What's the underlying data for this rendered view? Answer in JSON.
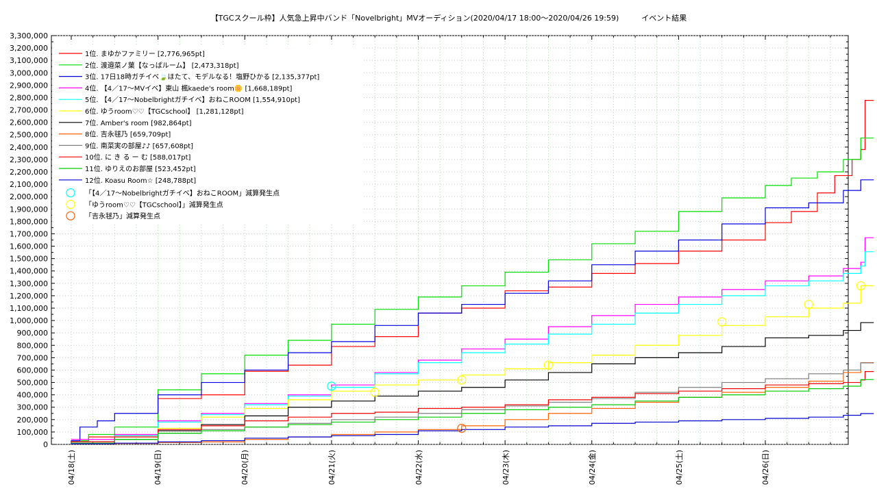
{
  "chart_data": {
    "type": "line",
    "title": "【TGCスクール枠】人気急上昇中バンド「Novelbright」MVオーディション(2020/04/17 18:00〜2020/04/26 19:59)　　　イベント結果",
    "xlabel": "",
    "ylabel": "",
    "x_tick_labels": [
      "04/18(土)",
      "04/19(日)",
      "04/20(月)",
      "04/21(火)",
      "04/22(水)",
      "04/23(木)",
      "04/24(金)",
      "04/25(土)",
      "04/26(日)"
    ],
    "ylim": [
      0,
      3300000
    ],
    "y_ticks": [
      0,
      100000,
      200000,
      300000,
      400000,
      500000,
      600000,
      700000,
      800000,
      900000,
      1000000,
      1100000,
      1200000,
      1300000,
      1400000,
      1500000,
      1600000,
      1700000,
      1800000,
      1900000,
      2000000,
      2100000,
      2200000,
      2300000,
      2400000,
      2500000,
      2600000,
      2700000,
      2800000,
      2900000,
      3000000,
      3100000,
      3200000,
      3300000
    ],
    "y_tick_labels": [
      "0",
      "100,000",
      "200,000",
      "300,000",
      "400,000",
      "500,000",
      "600,000",
      "700,000",
      "800,000",
      "900,000",
      "1,000,000",
      "1,100,000",
      "1,200,000",
      "1,300,000",
      "1,400,000",
      "1,500,000",
      "1,600,000",
      "1,700,000",
      "1,800,000",
      "1,900,000",
      "2,000,000",
      "2,100,000",
      "2,200,000",
      "2,300,000",
      "2,400,000",
      "2,500,000",
      "2,600,000",
      "2,700,000",
      "2,800,000",
      "2,900,000",
      "3,000,000",
      "3,100,000",
      "3,200,000",
      "3,300,000"
    ],
    "grid": true,
    "legend_position": "top-left",
    "x_domain": [
      0,
      9.25
    ],
    "series": [
      {
        "name": "1位. まゆかファミリー [2,776,965pt]",
        "color": "#ff0000",
        "x": [
          0,
          0.2,
          0.5,
          1,
          1.5,
          2,
          2.5,
          3,
          3.5,
          4,
          4.5,
          5,
          5.5,
          6,
          6.5,
          7,
          7.5,
          8,
          8.3,
          8.6,
          8.8,
          9.0,
          9.1,
          9.15,
          9.25
        ],
        "y": [
          30000,
          60000,
          70000,
          370000,
          400000,
          590000,
          640000,
          790000,
          870000,
          1060000,
          1100000,
          1240000,
          1270000,
          1380000,
          1460000,
          1560000,
          1650000,
          1790000,
          1880000,
          2030000,
          2170000,
          2300000,
          2380000,
          2776965,
          2776965
        ]
      },
      {
        "name": "2位. 渡邉菜ノ葉【なっぱルーム】 [2,473,318pt]",
        "color": "#00dd00",
        "x": [
          0,
          0.2,
          0.5,
          1,
          1.5,
          2,
          2.5,
          3,
          3.5,
          4,
          4.5,
          5,
          5.5,
          6,
          6.5,
          7,
          7.5,
          8,
          8.3,
          8.6,
          8.9,
          9.1,
          9.25
        ],
        "y": [
          30000,
          80000,
          140000,
          440000,
          570000,
          720000,
          840000,
          970000,
          1090000,
          1190000,
          1280000,
          1390000,
          1490000,
          1620000,
          1720000,
          1880000,
          1990000,
          2090000,
          2150000,
          2200000,
          2300000,
          2473318,
          2473318
        ]
      },
      {
        "name": "3位. 17日18時ガチイベ🍃ほたて、モデルなる！塩野ひかる [2,135,377pt]",
        "color": "#0000dd",
        "x": [
          0,
          0.1,
          0.3,
          0.5,
          1,
          1.5,
          2,
          2.5,
          3,
          3.5,
          4,
          4.5,
          5,
          5.5,
          6,
          6.5,
          7,
          7.5,
          8,
          8.5,
          8.9,
          9.1,
          9.25
        ],
        "y": [
          30000,
          140000,
          190000,
          250000,
          400000,
          500000,
          600000,
          740000,
          830000,
          960000,
          1060000,
          1130000,
          1220000,
          1320000,
          1450000,
          1560000,
          1650000,
          1780000,
          1910000,
          1950000,
          2050000,
          2135377,
          2135377
        ]
      },
      {
        "name": "4位. 【4／17〜MVイベ】東山 楓kaede's room🌼 [1,668,189pt]",
        "color": "#ff00ff",
        "x": [
          0,
          0.5,
          1,
          1.5,
          2,
          2.5,
          3,
          3.5,
          4,
          4.5,
          5,
          5.5,
          6,
          6.5,
          7,
          7.5,
          8,
          8.5,
          8.9,
          9.1,
          9.15,
          9.25
        ],
        "y": [
          40000,
          80000,
          190000,
          250000,
          330000,
          400000,
          480000,
          580000,
          680000,
          770000,
          850000,
          950000,
          1040000,
          1130000,
          1190000,
          1250000,
          1320000,
          1360000,
          1420000,
          1470000,
          1668189,
          1668189
        ]
      },
      {
        "name": "5位. 【4／17〜Nobelbrightガチイベ】おねこROOM [1,554,910pt]",
        "color": "#00ffff",
        "x": [
          0,
          0.5,
          1,
          1.5,
          2,
          2.5,
          3,
          3.5,
          4,
          4.5,
          5,
          5.5,
          6,
          6.5,
          7,
          7.5,
          8,
          8.5,
          8.9,
          9.1,
          9.15,
          9.25
        ],
        "y": [
          20000,
          70000,
          180000,
          240000,
          320000,
          390000,
          460000,
          570000,
          660000,
          740000,
          810000,
          890000,
          970000,
          1060000,
          1130000,
          1200000,
          1280000,
          1320000,
          1380000,
          1440000,
          1554910,
          1554910
        ]
      },
      {
        "name": "6位. ゆうroom♡♡【TGCschool】 [1,281,128pt]",
        "color": "#ffff00",
        "x": [
          0,
          0.5,
          1,
          1.5,
          2,
          2.5,
          3,
          3.5,
          4,
          4.5,
          5,
          5.5,
          6,
          6.5,
          7,
          7.5,
          8,
          8.5,
          8.9,
          9.1,
          9.25
        ],
        "y": [
          20000,
          60000,
          130000,
          220000,
          290000,
          360000,
          430000,
          480000,
          520000,
          560000,
          610000,
          660000,
          720000,
          800000,
          880000,
          960000,
          1030000,
          1100000,
          1140000,
          1281128,
          1281128
        ]
      },
      {
        "name": "7位. Amber's room [982,864pt]",
        "color": "#000000",
        "x": [
          0,
          0.5,
          1,
          1.5,
          2,
          2.5,
          3,
          3.5,
          4,
          4.5,
          5,
          5.5,
          6,
          6.5,
          7,
          7.5,
          8,
          8.5,
          8.9,
          9.1,
          9.25
        ],
        "y": [
          20000,
          40000,
          110000,
          160000,
          230000,
          300000,
          350000,
          390000,
          430000,
          460000,
          520000,
          580000,
          650000,
          700000,
          740000,
          790000,
          860000,
          880000,
          920000,
          982864,
          982864
        ]
      },
      {
        "name": "8位. 吉永毬乃 [659,709pt]",
        "color": "#ff6000",
        "x": [
          0,
          0.5,
          1,
          1.5,
          2,
          2.5,
          3,
          3.5,
          4,
          4.5,
          5,
          5.5,
          6,
          6.5,
          7,
          7.5,
          8,
          8.5,
          8.9,
          9.1,
          9.25
        ],
        "y": [
          5000,
          8000,
          15000,
          20000,
          40000,
          60000,
          80000,
          100000,
          120000,
          150000,
          200000,
          250000,
          290000,
          340000,
          380000,
          420000,
          460000,
          510000,
          580000,
          659709,
          659709
        ]
      },
      {
        "name": "9位. 南菜実の部屋♪♪ [657,608pt]",
        "color": "#808080",
        "x": [
          0,
          0.5,
          1,
          1.5,
          2,
          2.5,
          3,
          3.5,
          4,
          4.5,
          5,
          5.5,
          6,
          6.5,
          7,
          7.5,
          8,
          8.5,
          8.9,
          9.1,
          9.25
        ],
        "y": [
          20000,
          40000,
          90000,
          120000,
          140000,
          170000,
          200000,
          220000,
          250000,
          280000,
          310000,
          340000,
          370000,
          420000,
          460000,
          500000,
          530000,
          570000,
          600000,
          657608,
          657608
        ]
      },
      {
        "name": "10位. に き る ー む [588,017pt]",
        "color": "#ee0000",
        "x": [
          0,
          0.5,
          1,
          1.5,
          2,
          2.5,
          3,
          3.5,
          4,
          4.5,
          5,
          5.5,
          6,
          6.5,
          7,
          7.5,
          8,
          8.5,
          8.9,
          9.1,
          9.15,
          9.25
        ],
        "y": [
          20000,
          60000,
          120000,
          150000,
          190000,
          220000,
          250000,
          260000,
          290000,
          300000,
          320000,
          360000,
          380000,
          410000,
          430000,
          450000,
          480000,
          490000,
          500000,
          520000,
          588017,
          588017
        ]
      },
      {
        "name": "11位. ゆりえのお部屋 [523,452pt]",
        "color": "#00cc00",
        "x": [
          0,
          0.5,
          1,
          1.5,
          2,
          2.5,
          3,
          3.5,
          4,
          4.5,
          5,
          5.5,
          6,
          6.5,
          7,
          7.5,
          8,
          8.5,
          8.9,
          9.1,
          9.25
        ],
        "y": [
          10000,
          40000,
          90000,
          110000,
          140000,
          160000,
          180000,
          200000,
          220000,
          250000,
          280000,
          300000,
          320000,
          350000,
          380000,
          400000,
          430000,
          450000,
          470000,
          523452,
          523452
        ]
      },
      {
        "name": "12位. Koasu Room☆ [248,788pt]",
        "color": "#0000cc",
        "x": [
          0,
          0.5,
          1,
          1.5,
          2,
          2.5,
          3,
          3.5,
          4,
          4.5,
          5,
          5.5,
          6,
          6.5,
          7,
          7.5,
          8,
          8.5,
          8.9,
          9.1,
          9.25
        ],
        "y": [
          5000,
          10000,
          20000,
          30000,
          50000,
          60000,
          70000,
          80000,
          110000,
          120000,
          140000,
          150000,
          170000,
          180000,
          190000,
          200000,
          210000,
          220000,
          235000,
          248788,
          248788
        ]
      }
    ],
    "markers": [
      {
        "name": "「【4／17〜Nobelbrightガチイベ】おねこROOM」減算発生点",
        "color": "#00ffff",
        "points": [
          {
            "x": 3.0,
            "y": 470000
          }
        ]
      },
      {
        "name": "「ゆうroom♡♡【TGCschool】」減算発生点",
        "color": "#ffff00",
        "points": [
          {
            "x": 3.5,
            "y": 420000
          },
          {
            "x": 4.5,
            "y": 520000
          },
          {
            "x": 5.5,
            "y": 640000
          },
          {
            "x": 7.5,
            "y": 990000
          },
          {
            "x": 8.5,
            "y": 1130000
          },
          {
            "x": 9.1,
            "y": 1280000
          }
        ]
      },
      {
        "name": "「吉永毬乃」減算発生点",
        "color": "#ff6000",
        "points": [
          {
            "x": 4.5,
            "y": 130000
          }
        ]
      }
    ]
  }
}
